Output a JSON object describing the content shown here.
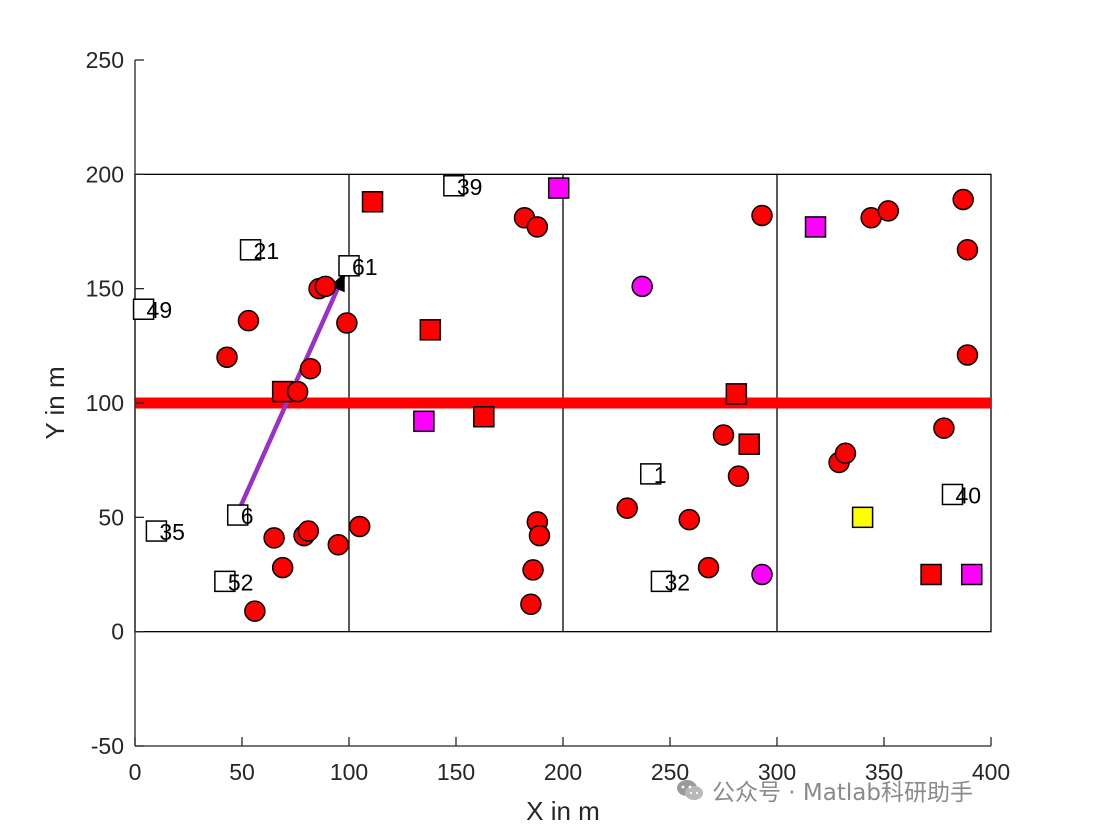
{
  "chart_data": {
    "type": "scatter",
    "xlabel": "X in m",
    "ylabel": "Y in m",
    "xlim": [
      0,
      400
    ],
    "ylim": [
      -50,
      250
    ],
    "xticks": [
      "0",
      "50",
      "100",
      "150",
      "200",
      "250",
      "300",
      "350",
      "400"
    ],
    "yticks": [
      "-50",
      "0",
      "50",
      "100",
      "150",
      "200",
      "250"
    ],
    "grid": false,
    "regions": {
      "outline": {
        "x": [
          0,
          400
        ],
        "y": [
          0,
          200
        ]
      },
      "vertical_dividers_x": [
        100,
        200,
        300
      ],
      "road": {
        "y": 100,
        "color": "#ff0000"
      }
    },
    "trajectory": {
      "from": [
        48,
        52
      ],
      "to": [
        98,
        157
      ],
      "color": "#9b30c8",
      "arrowhead_color": "#000000"
    },
    "series": [
      {
        "marker": "square",
        "fill": "#ff0000",
        "points": [
          [
            111,
            188
          ],
          [
            138,
            132
          ],
          [
            163,
            94
          ],
          [
            69,
            105
          ],
          [
            281,
            104
          ],
          [
            287,
            82
          ],
          [
            372,
            25
          ]
        ]
      },
      {
        "marker": "circle",
        "fill": "#ff0000",
        "points": [
          [
            43,
            120
          ],
          [
            53,
            136
          ],
          [
            82,
            115
          ],
          [
            86,
            150
          ],
          [
            89,
            151
          ],
          [
            99,
            135
          ],
          [
            76,
            105
          ],
          [
            65,
            41
          ],
          [
            69,
            28
          ],
          [
            79,
            42
          ],
          [
            81,
            44
          ],
          [
            95,
            38
          ],
          [
            105,
            46
          ],
          [
            56,
            9
          ],
          [
            182,
            181
          ],
          [
            188,
            177
          ],
          [
            188,
            48
          ],
          [
            189,
            42
          ],
          [
            186,
            27
          ],
          [
            185,
            12
          ],
          [
            230,
            54
          ],
          [
            259,
            49
          ],
          [
            268,
            28
          ],
          [
            275,
            86
          ],
          [
            282,
            68
          ],
          [
            293,
            182
          ],
          [
            329,
            74
          ],
          [
            332,
            78
          ],
          [
            344,
            181
          ],
          [
            352,
            184
          ],
          [
            378,
            89
          ],
          [
            387,
            189
          ],
          [
            389,
            167
          ],
          [
            389,
            121
          ]
        ]
      },
      {
        "marker": "square",
        "fill": "#ff00ff",
        "points": [
          [
            198,
            194
          ],
          [
            135,
            92
          ],
          [
            318,
            177
          ],
          [
            391,
            25
          ]
        ]
      },
      {
        "marker": "circle",
        "fill": "#ff00ff",
        "points": [
          [
            237,
            151
          ],
          [
            293,
            25
          ]
        ]
      },
      {
        "marker": "square",
        "fill": "#ffff00",
        "points": [
          [
            340,
            50
          ]
        ]
      },
      {
        "marker": "square",
        "fill": "#ffffff",
        "points": [
          [
            54,
            167
          ],
          [
            149,
            195
          ],
          [
            100,
            160
          ],
          [
            4,
            141
          ],
          [
            48,
            51
          ],
          [
            10,
            44
          ],
          [
            42,
            22
          ],
          [
            241,
            69
          ],
          [
            246,
            22
          ],
          [
            382,
            60
          ]
        ]
      }
    ],
    "labels": [
      {
        "text": "21",
        "x": 54,
        "y": 167
      },
      {
        "text": "39",
        "x": 149,
        "y": 195
      },
      {
        "text": "61",
        "x": 100,
        "y": 160
      },
      {
        "text": "49",
        "x": 4,
        "y": 141
      },
      {
        "text": "6",
        "x": 48,
        "y": 51
      },
      {
        "text": "35",
        "x": 10,
        "y": 44
      },
      {
        "text": "52",
        "x": 42,
        "y": 22
      },
      {
        "text": "1",
        "x": 241,
        "y": 69
      },
      {
        "text": "32",
        "x": 246,
        "y": 22
      },
      {
        "text": "40",
        "x": 382,
        "y": 60
      }
    ]
  },
  "watermark": {
    "text": "公众号 · Matlab科研助手",
    "icon": "wechat-icon"
  }
}
